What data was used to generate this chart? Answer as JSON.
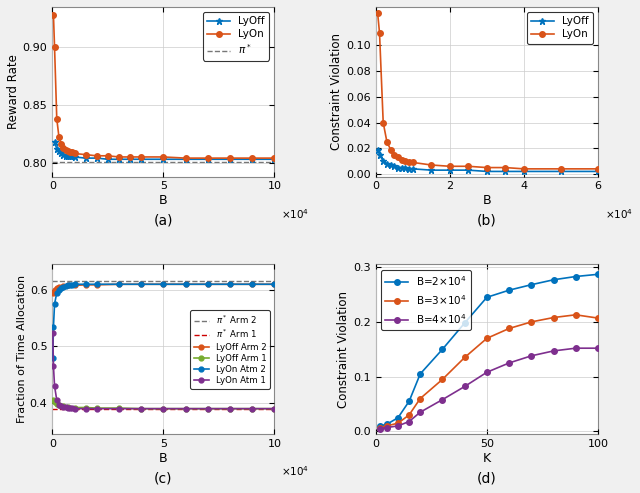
{
  "subplot_a": {
    "xlabel": "B",
    "ylabel": "Reward Rate",
    "xlim": [
      0,
      100000
    ],
    "ylim": [
      0.788,
      0.935
    ],
    "xticks": [
      0,
      50000,
      100000
    ],
    "xticklabels": [
      "0",
      "5",
      "10"
    ],
    "pi_star": 0.801,
    "lyoff_x": [
      1000,
      2000,
      3000,
      4000,
      5000,
      6000,
      7000,
      8000,
      9000,
      10000,
      15000,
      20000,
      25000,
      30000,
      35000,
      40000,
      50000,
      60000,
      70000,
      80000,
      90000,
      100000
    ],
    "lyoff_y": [
      0.818,
      0.812,
      0.81,
      0.808,
      0.807,
      0.806,
      0.806,
      0.806,
      0.806,
      0.805,
      0.804,
      0.804,
      0.803,
      0.803,
      0.803,
      0.803,
      0.803,
      0.803,
      0.803,
      0.803,
      0.803,
      0.803
    ],
    "lyon_x": [
      500,
      1000,
      2000,
      3000,
      4000,
      5000,
      6000,
      7000,
      8000,
      9000,
      10000,
      15000,
      20000,
      25000,
      30000,
      35000,
      40000,
      50000,
      60000,
      70000,
      80000,
      90000,
      100000
    ],
    "lyon_y": [
      0.928,
      0.9,
      0.838,
      0.822,
      0.816,
      0.813,
      0.811,
      0.81,
      0.809,
      0.809,
      0.808,
      0.807,
      0.806,
      0.806,
      0.805,
      0.805,
      0.805,
      0.805,
      0.804,
      0.804,
      0.804,
      0.804,
      0.804
    ],
    "lyoff_color": "#0072BD",
    "lyon_color": "#D95319",
    "pistar_color": "#777777",
    "yticks": [
      0.8,
      0.85,
      0.9
    ]
  },
  "subplot_b": {
    "xlabel": "B",
    "ylabel": "Constraint Violation",
    "xlim": [
      0,
      60000
    ],
    "ylim": [
      -0.002,
      0.13
    ],
    "xticks": [
      0,
      20000,
      40000,
      60000
    ],
    "xticklabels": [
      "0",
      "2",
      "4",
      "6"
    ],
    "lyoff_x": [
      500,
      1000,
      2000,
      3000,
      4000,
      5000,
      6000,
      7000,
      8000,
      9000,
      10000,
      15000,
      20000,
      25000,
      30000,
      35000,
      40000,
      50000,
      60000
    ],
    "lyoff_y": [
      0.019,
      0.015,
      0.01,
      0.008,
      0.007,
      0.006,
      0.005,
      0.005,
      0.005,
      0.004,
      0.004,
      0.003,
      0.003,
      0.003,
      0.002,
      0.002,
      0.002,
      0.002,
      0.002
    ],
    "lyon_x": [
      500,
      1000,
      2000,
      3000,
      4000,
      5000,
      6000,
      7000,
      8000,
      9000,
      10000,
      15000,
      20000,
      25000,
      30000,
      35000,
      40000,
      50000,
      60000
    ],
    "lyon_y": [
      0.125,
      0.11,
      0.04,
      0.025,
      0.019,
      0.015,
      0.013,
      0.011,
      0.01,
      0.009,
      0.009,
      0.007,
      0.006,
      0.006,
      0.005,
      0.005,
      0.004,
      0.004,
      0.004
    ],
    "lyoff_color": "#0072BD",
    "lyon_color": "#D95319",
    "yticks": [
      0,
      0.02,
      0.04,
      0.06,
      0.08,
      0.1
    ]
  },
  "subplot_c": {
    "xlabel": "B",
    "ylabel": "Fraction of Time Allocation",
    "xlim": [
      0,
      100000
    ],
    "ylim": [
      0.345,
      0.645
    ],
    "xticks": [
      0,
      50000,
      100000
    ],
    "xticklabels": [
      "0",
      "5",
      "10"
    ],
    "pi_arm2": 0.615,
    "pi_arm1": 0.39,
    "lyoff_arm2_x": [
      500,
      1000,
      2000,
      3000,
      5000,
      7000,
      10000,
      15000,
      20000,
      30000,
      40000,
      50000,
      60000,
      70000,
      80000,
      90000,
      100000
    ],
    "lyoff_arm2_y": [
      0.595,
      0.6,
      0.603,
      0.605,
      0.607,
      0.608,
      0.608,
      0.609,
      0.609,
      0.61,
      0.61,
      0.61,
      0.61,
      0.61,
      0.61,
      0.61,
      0.61
    ],
    "lyoff_arm1_x": [
      500,
      1000,
      2000,
      3000,
      5000,
      7000,
      10000,
      15000,
      20000,
      30000,
      40000,
      50000,
      60000,
      70000,
      80000,
      90000,
      100000
    ],
    "lyoff_arm1_y": [
      0.406,
      0.402,
      0.398,
      0.396,
      0.394,
      0.393,
      0.392,
      0.392,
      0.391,
      0.391,
      0.39,
      0.39,
      0.39,
      0.39,
      0.39,
      0.39,
      0.39
    ],
    "lyon_arm2_x": [
      200,
      500,
      1000,
      2000,
      3000,
      4000,
      5000,
      6000,
      7000,
      8000,
      9000,
      10000,
      15000,
      20000,
      30000,
      40000,
      50000,
      60000,
      70000,
      80000,
      90000,
      100000
    ],
    "lyon_arm2_y": [
      0.48,
      0.535,
      0.575,
      0.595,
      0.6,
      0.603,
      0.606,
      0.607,
      0.608,
      0.609,
      0.609,
      0.61,
      0.61,
      0.61,
      0.61,
      0.61,
      0.61,
      0.61,
      0.61,
      0.61,
      0.61,
      0.61
    ],
    "lyon_arm1_x": [
      200,
      500,
      1000,
      2000,
      3000,
      4000,
      5000,
      6000,
      7000,
      8000,
      9000,
      10000,
      15000,
      20000,
      30000,
      40000,
      50000,
      60000,
      70000,
      80000,
      90000,
      100000
    ],
    "lyon_arm1_y": [
      0.523,
      0.465,
      0.43,
      0.405,
      0.397,
      0.394,
      0.393,
      0.393,
      0.392,
      0.391,
      0.391,
      0.39,
      0.39,
      0.39,
      0.39,
      0.39,
      0.39,
      0.39,
      0.39,
      0.39,
      0.39,
      0.39
    ],
    "lyoff_arm2_color": "#D95319",
    "lyoff_arm1_color": "#77AC30",
    "lyon_arm2_color": "#0072BD",
    "lyon_arm1_color": "#7E2F8E",
    "pi_arm2_color": "#777777",
    "pi_arm1_color": "#CC0000",
    "yticks": [
      0.4,
      0.5,
      0.6
    ]
  },
  "subplot_d": {
    "xlabel": "K",
    "ylabel": "Constraint Violation",
    "xlim": [
      0,
      100
    ],
    "ylim": [
      -0.005,
      0.305
    ],
    "xticks": [
      0,
      50,
      100
    ],
    "yticks": [
      0,
      0.1,
      0.2,
      0.3
    ],
    "b2e4_x": [
      2,
      5,
      10,
      15,
      20,
      30,
      40,
      50,
      60,
      70,
      80,
      90,
      100
    ],
    "b2e4_y": [
      0.01,
      0.013,
      0.025,
      0.055,
      0.105,
      0.15,
      0.198,
      0.245,
      0.258,
      0.268,
      0.277,
      0.283,
      0.287
    ],
    "b3e4_x": [
      2,
      5,
      10,
      15,
      20,
      30,
      40,
      50,
      60,
      70,
      80,
      90,
      100
    ],
    "b3e4_y": [
      0.007,
      0.01,
      0.015,
      0.03,
      0.06,
      0.095,
      0.135,
      0.17,
      0.188,
      0.2,
      0.208,
      0.213,
      0.207
    ],
    "b4e4_x": [
      2,
      5,
      10,
      15,
      20,
      30,
      40,
      50,
      60,
      70,
      80,
      90,
      100
    ],
    "b4e4_y": [
      0.005,
      0.007,
      0.01,
      0.018,
      0.035,
      0.058,
      0.082,
      0.108,
      0.125,
      0.138,
      0.147,
      0.152,
      0.152
    ],
    "b2e4_color": "#0072BD",
    "b3e4_color": "#D95319",
    "b4e4_color": "#7E2F8E"
  }
}
